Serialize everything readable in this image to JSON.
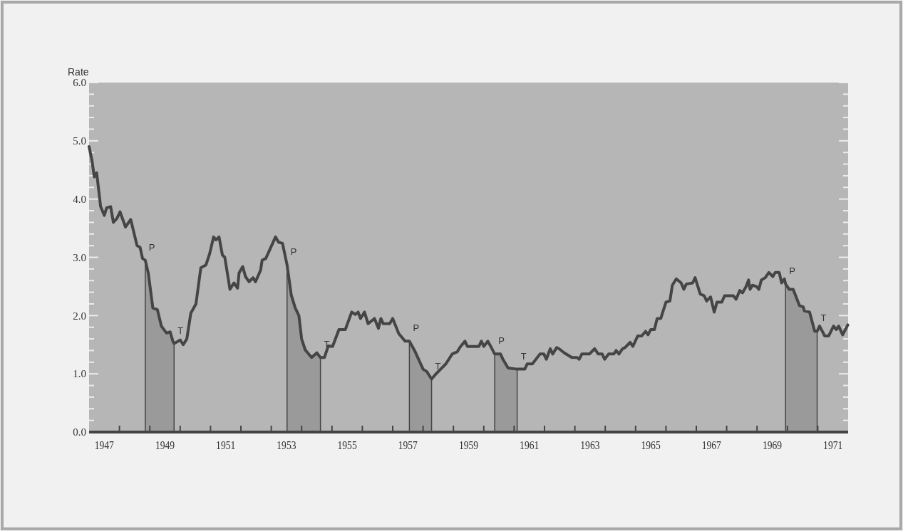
{
  "chart_data": {
    "type": "line",
    "ylabel": "Rate",
    "x": [
      1947.0,
      1947.1,
      1947.17,
      1947.25,
      1947.38,
      1947.5,
      1947.58,
      1947.71,
      1947.8,
      1947.92,
      1948.02,
      1948.2,
      1948.37,
      1948.58,
      1948.68,
      1948.76,
      1948.85,
      1948.95,
      1949.1,
      1949.25,
      1949.38,
      1949.55,
      1949.67,
      1949.76,
      1949.8,
      1950.0,
      1950.1,
      1950.22,
      1950.35,
      1950.52,
      1950.68,
      1950.85,
      1950.97,
      1951.1,
      1951.18,
      1951.28,
      1951.39,
      1951.47,
      1951.64,
      1951.77,
      1951.89,
      1951.94,
      1952.06,
      1952.15,
      1952.27,
      1952.4,
      1952.48,
      1952.65,
      1952.7,
      1952.82,
      1952.95,
      1953.14,
      1953.24,
      1953.37,
      1953.52,
      1953.66,
      1953.79,
      1953.91,
      1954.0,
      1954.12,
      1954.33,
      1954.5,
      1954.62,
      1954.75,
      1954.88,
      1955.02,
      1955.23,
      1955.44,
      1955.65,
      1955.77,
      1955.86,
      1955.94,
      1956.07,
      1956.19,
      1956.4,
      1956.53,
      1956.61,
      1956.69,
      1956.9,
      1957.0,
      1957.2,
      1957.41,
      1957.55,
      1957.74,
      1958.0,
      1958.12,
      1958.28,
      1958.41,
      1958.58,
      1958.75,
      1958.96,
      1959.13,
      1959.21,
      1959.38,
      1959.46,
      1959.84,
      1959.92,
      1960.0,
      1960.13,
      1960.25,
      1960.36,
      1960.55,
      1960.63,
      1960.8,
      1961.1,
      1961.35,
      1961.43,
      1961.6,
      1961.85,
      1961.98,
      1962.06,
      1962.19,
      1962.27,
      1962.4,
      1962.48,
      1962.65,
      1962.9,
      1963.07,
      1963.14,
      1963.23,
      1963.48,
      1963.65,
      1963.77,
      1963.9,
      1963.98,
      1964.11,
      1964.28,
      1964.36,
      1964.45,
      1964.57,
      1964.65,
      1964.82,
      1964.91,
      1965.07,
      1965.2,
      1965.33,
      1965.41,
      1965.5,
      1965.62,
      1965.71,
      1965.83,
      1966.0,
      1966.13,
      1966.21,
      1966.34,
      1966.5,
      1966.59,
      1966.67,
      1966.88,
      1966.96,
      1967.13,
      1967.26,
      1967.34,
      1967.47,
      1967.59,
      1967.68,
      1967.84,
      1967.93,
      1968.22,
      1968.31,
      1968.43,
      1968.52,
      1968.64,
      1968.72,
      1968.77,
      1968.85,
      1968.98,
      1969.06,
      1969.14,
      1969.27,
      1969.39,
      1969.52,
      1969.6,
      1969.73,
      1969.81,
      1969.9,
      1969.94,
      1970.06,
      1970.19,
      1970.4,
      1970.52,
      1970.56,
      1970.73,
      1970.9,
      1970.98,
      1971.06,
      1971.23,
      1971.36,
      1971.52,
      1971.61,
      1971.69,
      1971.82,
      1971.99
    ],
    "series": [
      {
        "color": "#454545",
        "values": [
          4.9,
          4.65,
          4.38,
          4.45,
          3.87,
          3.72,
          3.85,
          3.87,
          3.6,
          3.67,
          3.78,
          3.52,
          3.65,
          3.2,
          3.17,
          2.98,
          2.95,
          2.73,
          2.13,
          2.1,
          1.82,
          1.7,
          1.72,
          1.56,
          1.52,
          1.58,
          1.5,
          1.6,
          2.04,
          2.2,
          2.82,
          2.87,
          3.06,
          3.35,
          3.3,
          3.35,
          3.04,
          3.0,
          2.45,
          2.56,
          2.47,
          2.73,
          2.84,
          2.67,
          2.58,
          2.65,
          2.58,
          2.78,
          2.95,
          2.98,
          3.13,
          3.35,
          3.26,
          3.24,
          2.87,
          2.35,
          2.13,
          2.0,
          1.6,
          1.41,
          1.28,
          1.36,
          1.28,
          1.28,
          1.48,
          1.47,
          1.76,
          1.76,
          2.06,
          2.02,
          2.06,
          1.95,
          2.06,
          1.86,
          1.95,
          1.78,
          1.95,
          1.86,
          1.86,
          1.95,
          1.69,
          1.56,
          1.56,
          1.38,
          1.08,
          1.04,
          0.91,
          0.99,
          1.08,
          1.17,
          1.34,
          1.38,
          1.45,
          1.56,
          1.47,
          1.47,
          1.56,
          1.47,
          1.56,
          1.45,
          1.34,
          1.34,
          1.25,
          1.1,
          1.08,
          1.08,
          1.17,
          1.17,
          1.34,
          1.34,
          1.25,
          1.43,
          1.34,
          1.45,
          1.43,
          1.36,
          1.28,
          1.28,
          1.25,
          1.34,
          1.34,
          1.43,
          1.34,
          1.34,
          1.25,
          1.34,
          1.34,
          1.4,
          1.34,
          1.43,
          1.45,
          1.54,
          1.47,
          1.65,
          1.65,
          1.73,
          1.67,
          1.76,
          1.76,
          1.95,
          1.95,
          2.23,
          2.25,
          2.52,
          2.63,
          2.56,
          2.45,
          2.54,
          2.56,
          2.65,
          2.37,
          2.34,
          2.25,
          2.32,
          2.06,
          2.23,
          2.23,
          2.34,
          2.34,
          2.28,
          2.43,
          2.39,
          2.5,
          2.61,
          2.45,
          2.52,
          2.5,
          2.45,
          2.61,
          2.65,
          2.74,
          2.67,
          2.74,
          2.74,
          2.56,
          2.63,
          2.54,
          2.45,
          2.45,
          2.17,
          2.15,
          2.08,
          2.06,
          1.73,
          1.73,
          1.82,
          1.65,
          1.65,
          1.82,
          1.76,
          1.82,
          1.67,
          1.84
        ]
      }
    ],
    "xlim": [
      1947,
      1972
    ],
    "xticks": [
      {
        "value": 1947.5,
        "label": "1947"
      },
      {
        "value": 1948,
        "label": null
      },
      {
        "value": 1949,
        "label": null
      },
      {
        "value": 1949.5,
        "label": "1949"
      },
      {
        "value": 1950,
        "label": null
      },
      {
        "value": 1951,
        "label": null
      },
      {
        "value": 1951.5,
        "label": "1951"
      },
      {
        "value": 1952,
        "label": null
      },
      {
        "value": 1953,
        "label": null
      },
      {
        "value": 1953.5,
        "label": "1953"
      },
      {
        "value": 1954,
        "label": null
      },
      {
        "value": 1955,
        "label": null
      },
      {
        "value": 1955.5,
        "label": "1955"
      },
      {
        "value": 1956,
        "label": null
      },
      {
        "value": 1957,
        "label": null
      },
      {
        "value": 1957.5,
        "label": "1957"
      },
      {
        "value": 1958,
        "label": null
      },
      {
        "value": 1959,
        "label": null
      },
      {
        "value": 1959.5,
        "label": "1959"
      },
      {
        "value": 1960,
        "label": null
      },
      {
        "value": 1961,
        "label": null
      },
      {
        "value": 1961.5,
        "label": "1961"
      },
      {
        "value": 1962,
        "label": null
      },
      {
        "value": 1963,
        "label": null
      },
      {
        "value": 1963.5,
        "label": "1963"
      },
      {
        "value": 1964,
        "label": null
      },
      {
        "value": 1965,
        "label": null
      },
      {
        "value": 1965.5,
        "label": "1965"
      },
      {
        "value": 1966,
        "label": null
      },
      {
        "value": 1967,
        "label": null
      },
      {
        "value": 1967.5,
        "label": "1967"
      },
      {
        "value": 1968,
        "label": null
      },
      {
        "value": 1969,
        "label": null
      },
      {
        "value": 1969.5,
        "label": "1969"
      },
      {
        "value": 1970,
        "label": null
      },
      {
        "value": 1971,
        "label": null
      },
      {
        "value": 1971.5,
        "label": "1971"
      }
    ],
    "ylim": [
      0,
      6
    ],
    "yticks": [
      {
        "value": 0,
        "label": "0.0"
      },
      {
        "value": 0.2,
        "label": null
      },
      {
        "value": 0.4,
        "label": null
      },
      {
        "value": 0.6,
        "label": null
      },
      {
        "value": 0.8,
        "label": null
      },
      {
        "value": 1,
        "label": "1.0"
      },
      {
        "value": 1.2,
        "label": null
      },
      {
        "value": 1.4,
        "label": null
      },
      {
        "value": 1.6,
        "label": null
      },
      {
        "value": 1.8,
        "label": null
      },
      {
        "value": 2,
        "label": "2.0"
      },
      {
        "value": 2.2,
        "label": null
      },
      {
        "value": 2.4,
        "label": null
      },
      {
        "value": 2.6,
        "label": null
      },
      {
        "value": 2.8,
        "label": null
      },
      {
        "value": 3,
        "label": "3.0"
      },
      {
        "value": 3.2,
        "label": null
      },
      {
        "value": 3.4,
        "label": null
      },
      {
        "value": 3.6,
        "label": null
      },
      {
        "value": 3.8,
        "label": null
      },
      {
        "value": 4,
        "label": "4.0"
      },
      {
        "value": 4.2,
        "label": null
      },
      {
        "value": 4.4,
        "label": null
      },
      {
        "value": 4.6,
        "label": null
      },
      {
        "value": 4.8,
        "label": null
      },
      {
        "value": 5,
        "label": "5.0"
      },
      {
        "value": 5.2,
        "label": null
      },
      {
        "value": 5.4,
        "label": null
      },
      {
        "value": 5.6,
        "label": null
      },
      {
        "value": 5.8,
        "label": null
      },
      {
        "value": 6,
        "label": "6.0"
      }
    ],
    "bands": [
      {
        "axis": "x",
        "from": 1948.85,
        "to": 1949.8,
        "color": "#9a9a9a"
      },
      {
        "axis": "x",
        "from": 1953.52,
        "to": 1954.62,
        "color": "#9a9a9a"
      },
      {
        "axis": "x",
        "from": 1957.55,
        "to": 1958.28,
        "color": "#9a9a9a"
      },
      {
        "axis": "x",
        "from": 1960.36,
        "to": 1961.1,
        "color": "#9a9a9a"
      },
      {
        "axis": "x",
        "from": 1969.94,
        "to": 1970.98,
        "color": "#9a9a9a"
      }
    ],
    "annotations": [
      {
        "text": "P",
        "x": 1948.85,
        "y": 2.95
      },
      {
        "text": "T",
        "x": 1949.8,
        "y": 1.52
      },
      {
        "text": "P",
        "x": 1953.52,
        "y": 2.87
      },
      {
        "text": "T",
        "x": 1954.62,
        "y": 1.28
      },
      {
        "text": "P",
        "x": 1957.55,
        "y": 1.56
      },
      {
        "text": "T",
        "x": 1958.28,
        "y": 0.91
      },
      {
        "text": "P",
        "x": 1960.36,
        "y": 1.34
      },
      {
        "text": "T",
        "x": 1961.1,
        "y": 1.08
      },
      {
        "text": "P",
        "x": 1969.94,
        "y": 2.54
      },
      {
        "text": "T",
        "x": 1970.98,
        "y": 1.73
      }
    ]
  }
}
